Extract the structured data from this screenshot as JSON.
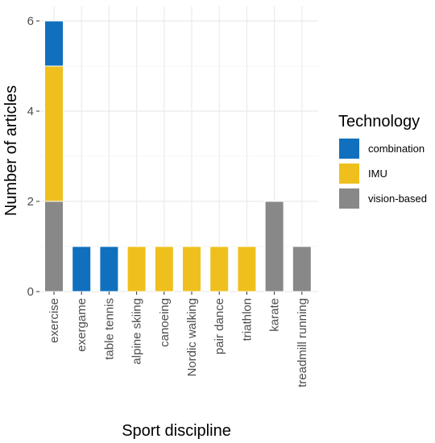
{
  "chart_data": {
    "type": "bar",
    "stacked": true,
    "xlabel": "Sport discipline",
    "ylabel": "Number of articles",
    "ylim": [
      0,
      6.2
    ],
    "y_ticks": [
      0,
      2,
      4,
      6
    ],
    "grid": true,
    "legend": {
      "title": "Technology",
      "position": "right"
    },
    "categories": [
      "exercise",
      "exergame",
      "table tennis",
      "alpine skiing",
      "canoeing",
      "Nordic walking",
      "pair dance",
      "triathlon",
      "karate",
      "treadmill running"
    ],
    "series": [
      {
        "name": "vision-based",
        "color": "#888888",
        "values": [
          2,
          0,
          0,
          0,
          0,
          0,
          0,
          0,
          2,
          1
        ]
      },
      {
        "name": "IMU",
        "color": "#EFC01D",
        "values": [
          3,
          0,
          0,
          1,
          1,
          1,
          1,
          1,
          0,
          0
        ]
      },
      {
        "name": "combination",
        "color": "#1070BE",
        "values": [
          1,
          1,
          1,
          0,
          0,
          0,
          0,
          0,
          0,
          0
        ]
      }
    ],
    "legend_order": [
      "combination",
      "IMU",
      "vision-based"
    ]
  }
}
